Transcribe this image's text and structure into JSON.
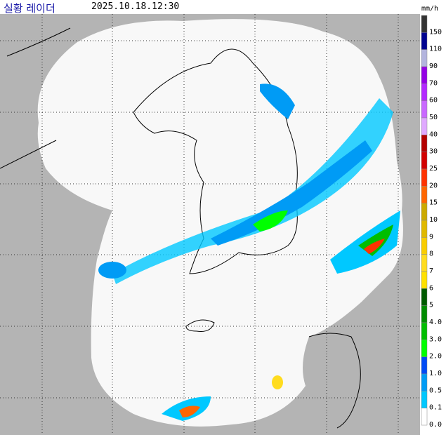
{
  "header": {
    "title": "실황 레이더",
    "timestamp": "2025.10.18.12:30"
  },
  "legend": {
    "unit": "mm/h",
    "levels": [
      {
        "label": "150",
        "color": "#333333"
      },
      {
        "label": "110",
        "color": "#000390"
      },
      {
        "label": "90",
        "color": "#b3b4de"
      },
      {
        "label": "70",
        "color": "#9300e4"
      },
      {
        "label": "60",
        "color": "#b329ff"
      },
      {
        "label": "50",
        "color": "#c969ff"
      },
      {
        "label": "40",
        "color": "#e0a9ff"
      },
      {
        "label": "30",
        "color": "#b40000"
      },
      {
        "label": "25",
        "color": "#d20000"
      },
      {
        "label": "20",
        "color": "#ff3200"
      },
      {
        "label": "15",
        "color": "#ff6600"
      },
      {
        "label": "10",
        "color": "#ccaa00"
      },
      {
        "label": "9",
        "color": "#e0b900"
      },
      {
        "label": "8",
        "color": "#f9cd00"
      },
      {
        "label": "7",
        "color": "#ffdc1f"
      },
      {
        "label": "6",
        "color": "#ffe100"
      },
      {
        "label": "5",
        "color": "#005a00"
      },
      {
        "label": "4.0",
        "color": "#008c00"
      },
      {
        "label": "3.0",
        "color": "#00be00"
      },
      {
        "label": "2.0",
        "color": "#00ff00"
      },
      {
        "label": "1.0",
        "color": "#004af5"
      },
      {
        "label": "0.5",
        "color": "#009bf5"
      },
      {
        "label": "0.1",
        "color": "#00c8ff"
      },
      {
        "label": "0.0",
        "color": "#ffffff"
      }
    ]
  }
}
